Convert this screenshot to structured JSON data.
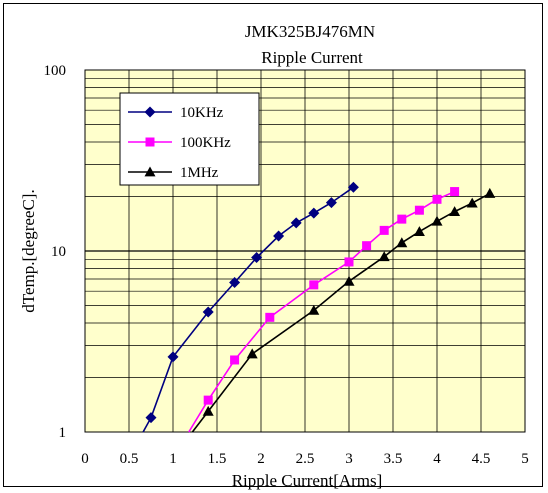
{
  "chart_data": {
    "type": "line",
    "title": "JMK325BJ476MN",
    "subtitle": "Ripple Current",
    "xlabel": "Ripple Current[Arms]",
    "ylabel": "dTemp.[degreeC].",
    "xlim": [
      0,
      5
    ],
    "ylim": [
      1,
      100
    ],
    "yscale": "log",
    "x_ticks": [
      "0",
      "0.5",
      "1",
      "1.5",
      "2",
      "2.5",
      "3",
      "3.5",
      "4",
      "4.5",
      "5"
    ],
    "y_ticks": [
      "1",
      "10",
      "100"
    ],
    "grid": true,
    "legend_position": "top-left",
    "plot_background": "#ffffcc",
    "series": [
      {
        "name": "10KHz",
        "color": "#000080",
        "marker": "diamond",
        "line_start": [
          0.66,
          1.0
        ],
        "x": [
          0.75,
          1.0,
          1.4,
          1.7,
          1.95,
          2.2,
          2.4,
          2.6,
          2.8,
          3.05
        ],
        "y": [
          1.2,
          2.6,
          4.6,
          6.7,
          9.2,
          12.1,
          14.3,
          16.2,
          18.5,
          22.5
        ]
      },
      {
        "name": "100KHz",
        "color": "#ff00ff",
        "marker": "square",
        "line_start": [
          1.18,
          1.0
        ],
        "x": [
          1.4,
          1.7,
          2.1,
          2.6,
          3.0,
          3.2,
          3.4,
          3.6,
          3.8,
          4.0,
          4.2
        ],
        "y": [
          1.5,
          2.5,
          4.3,
          6.5,
          8.7,
          10.7,
          13.0,
          15.0,
          16.8,
          19.3,
          21.3
        ]
      },
      {
        "name": "1MHz",
        "color": "#000000",
        "marker": "triangle",
        "line_start": [
          1.22,
          1.0
        ],
        "x": [
          1.4,
          1.9,
          2.6,
          3.0,
          3.4,
          3.6,
          3.8,
          4.0,
          4.2,
          4.4,
          4.6
        ],
        "y": [
          1.3,
          2.7,
          4.7,
          6.8,
          9.3,
          11.1,
          12.8,
          14.6,
          16.5,
          18.4,
          20.8
        ]
      }
    ]
  }
}
